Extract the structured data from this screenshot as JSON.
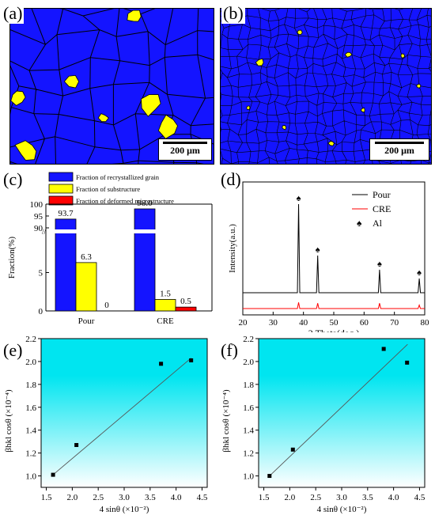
{
  "panels": {
    "a": {
      "label": "(a)",
      "scale": "200 μm"
    },
    "b": {
      "label": "(b)",
      "scale": "200 μm"
    },
    "c": {
      "label": "(c)"
    },
    "d": {
      "label": "(d)"
    },
    "e": {
      "label": "(e)"
    },
    "f": {
      "label": "(f)"
    }
  },
  "colors": {
    "grain": "#1414ff",
    "sub": "#ffff00",
    "deformed": "#ff0000",
    "xrd_pour": "#000000",
    "xrd_cre": "#ff0000",
    "band": "#00e5f0"
  },
  "chart_data": [
    {
      "id": "c",
      "type": "bar",
      "categories": [
        "Pour",
        "CRE"
      ],
      "series": [
        {
          "name": "Fraction of recrystallized grain",
          "values": [
            93.7,
            98.0
          ]
        },
        {
          "name": "Fraction of substructure",
          "values": [
            6.3,
            1.5
          ]
        },
        {
          "name": "Fraction of deformed microstructure",
          "values": [
            0,
            0.5
          ]
        }
      ],
      "data_labels": [
        "93.7",
        "98.0",
        "6.3",
        "1.5",
        "0",
        "0.5"
      ],
      "ylabel": "Fraction(%)",
      "yticks_upper": [
        "90",
        "95",
        "100"
      ],
      "yticks_lower": [
        "0",
        "5"
      ],
      "axis_break": true,
      "legend": "top"
    },
    {
      "id": "d",
      "type": "line",
      "series": [
        {
          "name": "Pour",
          "peaks": [
            [
              38.4,
              1.0
            ],
            [
              44.7,
              0.42
            ],
            [
              65.1,
              0.26
            ],
            [
              78.2,
              0.16
            ]
          ]
        },
        {
          "name": "CRE",
          "peaks": [
            [
              38.4,
              0.28
            ],
            [
              44.7,
              0.24
            ],
            [
              65.1,
              0.24
            ],
            [
              78.2,
              0.16
            ]
          ]
        }
      ],
      "marker_label": "Al",
      "marker_symbol": "♠",
      "xlabel": "2 Theta(deg.)",
      "ylabel": "Intensity(a.u.)",
      "xlim": [
        20,
        80
      ],
      "xticks": [
        "20",
        "30",
        "40",
        "50",
        "60",
        "70",
        "80"
      ],
      "legend": "top-right"
    },
    {
      "id": "e",
      "type": "scatter",
      "points": [
        [
          1.63,
          1.01
        ],
        [
          2.08,
          1.27
        ],
        [
          3.71,
          1.98
        ],
        [
          4.29,
          2.01
        ]
      ],
      "fit": [
        [
          1.63,
          1.01
        ],
        [
          4.29,
          2.03
        ]
      ],
      "xlabel": "4 sinθ (×10⁻²)",
      "ylabel": "βhkl cosθ (×10⁻⁴)",
      "xlim": [
        1.4,
        4.6
      ],
      "ylim": [
        0.9,
        2.2
      ],
      "xticks": [
        "1.5",
        "2.0",
        "2.5",
        "3.0",
        "3.5",
        "4.0",
        "4.5"
      ],
      "yticks": [
        "1.0",
        "1.2",
        "1.4",
        "1.6",
        "1.8",
        "2.0",
        "2.2"
      ]
    },
    {
      "id": "f",
      "type": "scatter",
      "points": [
        [
          1.61,
          1.0
        ],
        [
          2.06,
          1.23
        ],
        [
          3.81,
          2.11
        ],
        [
          4.26,
          1.99
        ]
      ],
      "fit": [
        [
          1.61,
          1.0
        ],
        [
          4.27,
          2.15
        ]
      ],
      "xlabel": "4 sinθ (×10⁻²)",
      "ylabel": "βhkl cosθ (×10⁻⁴)",
      "xlim": [
        1.4,
        4.6
      ],
      "ylim": [
        0.9,
        2.2
      ],
      "xticks": [
        "1.5",
        "2.0",
        "2.5",
        "3.0",
        "3.5",
        "4.0",
        "4.5"
      ],
      "yticks": [
        "1.0",
        "1.2",
        "1.4",
        "1.6",
        "1.8",
        "2.0",
        "2.2"
      ]
    }
  ]
}
